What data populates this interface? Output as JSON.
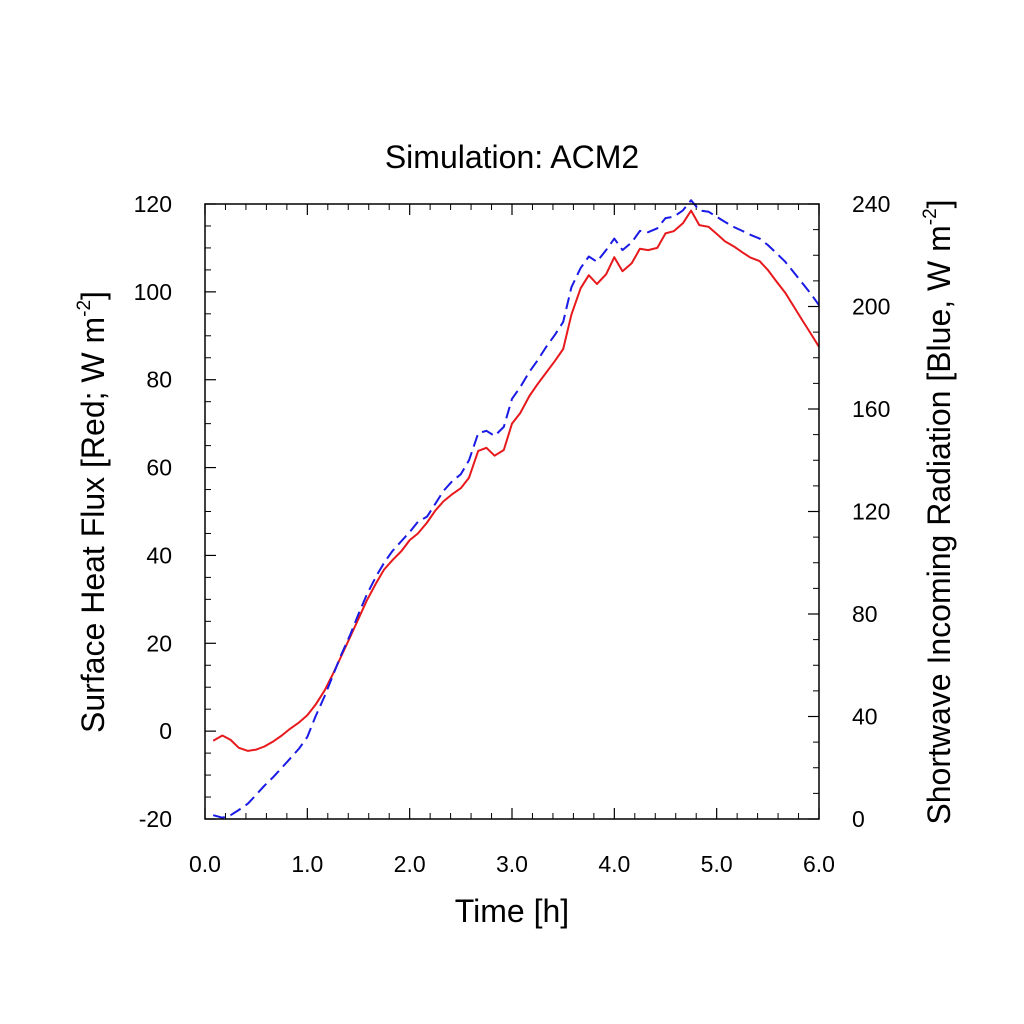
{
  "chart_data": {
    "type": "line",
    "title": "Simulation: ACM2",
    "xlabel": "Time [h]",
    "ylabel_left": {
      "text": "Surface Heat Flux [Red; W m",
      "sup": "-2",
      "close": "]"
    },
    "ylabel_right": {
      "text": "Shortwave Incoming Radiation [Blue, W m",
      "sup": "-2",
      "close": "]"
    },
    "xlim": [
      0,
      6
    ],
    "ylim_left": [
      -20,
      120
    ],
    "ylim_right": [
      0,
      240
    ],
    "x_ticks": [
      0,
      1,
      2,
      3,
      4,
      5,
      6
    ],
    "x_tick_labels": [
      "0.0",
      "1.0",
      "2.0",
      "3.0",
      "4.0",
      "5.0",
      "6.0"
    ],
    "y_left_ticks": [
      -20,
      0,
      20,
      40,
      60,
      80,
      100,
      120
    ],
    "y_left_tick_labels": [
      "-20",
      "0",
      "20",
      "40",
      "60",
      "80",
      "100",
      "120"
    ],
    "y_right_ticks": [
      0,
      40,
      80,
      120,
      160,
      200,
      240
    ],
    "y_right_tick_labels": [
      "0",
      "40",
      "80",
      "120",
      "160",
      "200",
      "240"
    ],
    "series": [
      {
        "axis": "left",
        "color": "#e8191c",
        "dash": "solid",
        "points": [
          [
            0.08,
            -2.2
          ],
          [
            0.17,
            -1.0
          ],
          [
            0.25,
            -2.0
          ],
          [
            0.33,
            -3.8
          ],
          [
            0.42,
            -4.5
          ],
          [
            0.5,
            -4.2
          ],
          [
            0.58,
            -3.5
          ],
          [
            0.67,
            -2.3
          ],
          [
            0.75,
            -1.0
          ],
          [
            0.83,
            0.5
          ],
          [
            0.92,
            2.0
          ],
          [
            1.0,
            3.6
          ],
          [
            1.08,
            6.0
          ],
          [
            1.17,
            9.3
          ],
          [
            1.25,
            13.0
          ],
          [
            1.33,
            17.0
          ],
          [
            1.42,
            21.5
          ],
          [
            1.5,
            25.6
          ],
          [
            1.58,
            29.7
          ],
          [
            1.67,
            33.6
          ],
          [
            1.75,
            36.8
          ],
          [
            1.83,
            38.9
          ],
          [
            1.92,
            41.0
          ],
          [
            2.0,
            43.5
          ],
          [
            2.08,
            45.0
          ],
          [
            2.17,
            47.5
          ],
          [
            2.25,
            50.2
          ],
          [
            2.33,
            52.3
          ],
          [
            2.42,
            54.0
          ],
          [
            2.5,
            55.3
          ],
          [
            2.58,
            57.7
          ],
          [
            2.67,
            63.8
          ],
          [
            2.75,
            64.5
          ],
          [
            2.83,
            62.7
          ],
          [
            2.92,
            64.0
          ],
          [
            3.0,
            70.0
          ],
          [
            3.08,
            72.4
          ],
          [
            3.17,
            76.3
          ],
          [
            3.25,
            79.0
          ],
          [
            3.33,
            81.5
          ],
          [
            3.42,
            84.3
          ],
          [
            3.5,
            87.0
          ],
          [
            3.58,
            94.8
          ],
          [
            3.67,
            100.8
          ],
          [
            3.75,
            103.8
          ],
          [
            3.83,
            101.8
          ],
          [
            3.92,
            104.0
          ],
          [
            4.0,
            107.9
          ],
          [
            4.08,
            104.7
          ],
          [
            4.17,
            106.5
          ],
          [
            4.25,
            109.8
          ],
          [
            4.33,
            109.5
          ],
          [
            4.42,
            110.0
          ],
          [
            4.5,
            113.3
          ],
          [
            4.58,
            113.8
          ],
          [
            4.67,
            115.6
          ],
          [
            4.75,
            118.5
          ],
          [
            4.83,
            115.2
          ],
          [
            4.92,
            114.8
          ],
          [
            5.0,
            113.2
          ],
          [
            5.08,
            111.5
          ],
          [
            5.17,
            110.3
          ],
          [
            5.25,
            109.0
          ],
          [
            5.33,
            107.8
          ],
          [
            5.42,
            107.0
          ],
          [
            5.5,
            105.0
          ],
          [
            5.58,
            102.5
          ],
          [
            5.67,
            99.8
          ],
          [
            5.75,
            96.8
          ],
          [
            5.83,
            93.8
          ],
          [
            5.92,
            90.5
          ],
          [
            6.0,
            87.5
          ]
        ]
      },
      {
        "axis": "right",
        "color": "#1a1ae6",
        "dash": "dashed",
        "points": [
          [
            0.08,
            1.5
          ],
          [
            0.17,
            0.5
          ],
          [
            0.25,
            1.5
          ],
          [
            0.33,
            3.5
          ],
          [
            0.42,
            6.0
          ],
          [
            0.5,
            9.5
          ],
          [
            0.58,
            13.0
          ],
          [
            0.67,
            16.5
          ],
          [
            0.75,
            20.0
          ],
          [
            0.83,
            23.5
          ],
          [
            0.92,
            27.5
          ],
          [
            1.0,
            32.0
          ],
          [
            1.08,
            40.0
          ],
          [
            1.17,
            48.0
          ],
          [
            1.25,
            56.0
          ],
          [
            1.33,
            64.0
          ],
          [
            1.42,
            72.0
          ],
          [
            1.5,
            80.0
          ],
          [
            1.58,
            87.5
          ],
          [
            1.67,
            94.5
          ],
          [
            1.75,
            100.0
          ],
          [
            1.83,
            104.5
          ],
          [
            1.92,
            108.5
          ],
          [
            2.0,
            112.0
          ],
          [
            2.08,
            116.0
          ],
          [
            2.17,
            118.0
          ],
          [
            2.25,
            123.0
          ],
          [
            2.33,
            128.0
          ],
          [
            2.42,
            132.0
          ],
          [
            2.5,
            134.5
          ],
          [
            2.58,
            140.0
          ],
          [
            2.67,
            150.5
          ],
          [
            2.75,
            151.5
          ],
          [
            2.83,
            149.5
          ],
          [
            2.92,
            153.0
          ],
          [
            3.0,
            164.0
          ],
          [
            3.08,
            168.5
          ],
          [
            3.17,
            174.5
          ],
          [
            3.25,
            179.0
          ],
          [
            3.33,
            184.0
          ],
          [
            3.42,
            189.0
          ],
          [
            3.5,
            194.0
          ],
          [
            3.58,
            207.5
          ],
          [
            3.67,
            215.0
          ],
          [
            3.75,
            219.5
          ],
          [
            3.83,
            217.5
          ],
          [
            3.92,
            222.0
          ],
          [
            4.0,
            226.5
          ],
          [
            4.08,
            222.0
          ],
          [
            4.17,
            225.0
          ],
          [
            4.25,
            229.5
          ],
          [
            4.33,
            229.0
          ],
          [
            4.42,
            230.5
          ],
          [
            4.5,
            234.5
          ],
          [
            4.58,
            235.0
          ],
          [
            4.67,
            237.5
          ],
          [
            4.75,
            241.5
          ],
          [
            4.83,
            237.5
          ],
          [
            4.92,
            237.0
          ],
          [
            5.0,
            235.0
          ],
          [
            5.08,
            233.0
          ],
          [
            5.17,
            231.0
          ],
          [
            5.25,
            229.5
          ],
          [
            5.33,
            228.0
          ],
          [
            5.42,
            226.5
          ],
          [
            5.5,
            224.0
          ],
          [
            5.58,
            221.0
          ],
          [
            5.67,
            217.5
          ],
          [
            5.75,
            213.5
          ],
          [
            5.83,
            209.5
          ],
          [
            5.92,
            205.0
          ],
          [
            6.0,
            200.5
          ]
        ]
      }
    ]
  }
}
